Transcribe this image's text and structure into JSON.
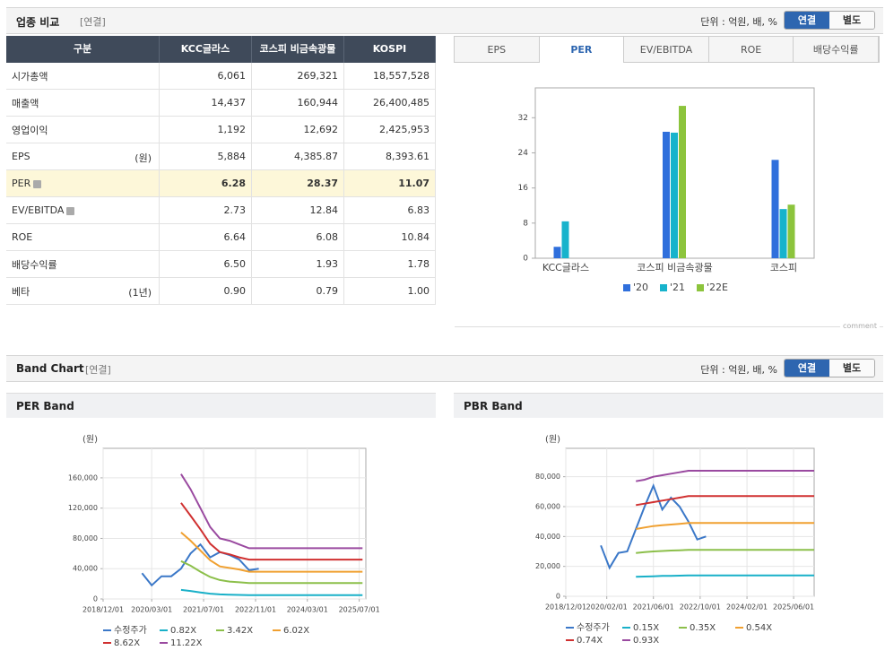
{
  "top": {
    "title": "업종 비교",
    "tag": "[연결]",
    "unit": "단위 : 억원, 배, %",
    "toggle": [
      "연결",
      "별도"
    ]
  },
  "table": {
    "columns": [
      "구분",
      "KCC글라스",
      "코스피 비금속광물",
      "KOSPI"
    ],
    "highlight_row": 4,
    "rows": [
      {
        "label": "시가총액",
        "values": [
          "6,061",
          "269,321",
          "18,557,528"
        ]
      },
      {
        "label": "매출액",
        "values": [
          "14,437",
          "160,944",
          "26,400,485"
        ]
      },
      {
        "label": "영업이익",
        "values": [
          "1,192",
          "12,692",
          "2,425,953"
        ]
      },
      {
        "label": "EPS",
        "note": "(원)",
        "values": [
          "5,884",
          "4,385.87",
          "8,393.61"
        ]
      },
      {
        "label": "PER",
        "help": true,
        "values": [
          "6.28",
          "28.37",
          "11.07"
        ]
      },
      {
        "label": "EV/EBITDA",
        "help": true,
        "values": [
          "2.73",
          "12.84",
          "6.83"
        ]
      },
      {
        "label": "ROE",
        "values": [
          "6.64",
          "6.08",
          "10.84"
        ]
      },
      {
        "label": "배당수익률",
        "values": [
          "6.50",
          "1.93",
          "1.78"
        ]
      },
      {
        "label": "베타",
        "note": "(1년)",
        "values": [
          "0.90",
          "0.79",
          "1.00"
        ]
      }
    ]
  },
  "tabs": {
    "items": [
      "EPS",
      "PER",
      "EV/EBITDA",
      "ROE",
      "배당수익률"
    ],
    "active": 1
  },
  "comment": "comment",
  "band": {
    "title": "Band Chart",
    "tag": "[연결]",
    "unit": "단위 : 억원, 배, %",
    "toggle": [
      "연결",
      "별도"
    ]
  },
  "chart_data": [
    {
      "type": "bar",
      "categories": [
        "KCC글라스",
        "코스피 비금속광물",
        "코스피"
      ],
      "series": [
        {
          "name": "'20",
          "color": "#2f6fdc",
          "values": [
            2.6,
            28.8,
            22.4
          ]
        },
        {
          "name": "'21",
          "color": "#17b3cc",
          "values": [
            8.4,
            28.6,
            11.2
          ]
        },
        {
          "name": "'22E",
          "color": "#8cc43c",
          "values": [
            null,
            34.7,
            12.2
          ]
        }
      ],
      "ylim": [
        0,
        38.8
      ],
      "yticks": [
        0,
        8,
        16,
        24,
        32
      ],
      "grid": false,
      "legend": "bottom"
    },
    {
      "type": "line",
      "title": "PER Band",
      "y_label": "(원)",
      "x": [
        "2019/12/01",
        "2020/03/01",
        "2020/06/01",
        "2020/09/01",
        "2020/12/01",
        "2021/03/01",
        "2021/06/01",
        "2021/09/01",
        "2021/12/01",
        "2022/03/01",
        "2022/06/01",
        "2022/09/01",
        "2022/12/01",
        "2023/03/01",
        "2023/06/01",
        "2023/09/01",
        "2023/12/01",
        "2024/06/01",
        "2024/12/01",
        "2025/06/01",
        "2025/08/01"
      ],
      "xlim": [
        "2018/12/01",
        "2025/09/01"
      ],
      "xticks": [
        "2018/12/01",
        "2020/03/01",
        "2021/07/01",
        "2022/11/01",
        "2024/03/01",
        "2025/07/01"
      ],
      "ylim": [
        0,
        199000
      ],
      "yticks": [
        0,
        {
          "value": 40000,
          "label": "40,000"
        },
        {
          "value": 80000,
          "label": "80,000"
        },
        {
          "value": 120000,
          "label": "120,000"
        },
        {
          "value": 160000,
          "label": "160,000"
        }
      ],
      "grid": true,
      "legend": "bottom",
      "series": [
        {
          "name": "수정주가",
          "color": "#3b78c8",
          "values": [
            34000,
            18000,
            30000,
            30000,
            40000,
            60000,
            72000,
            55000,
            62000,
            58000,
            52000,
            38000,
            40000,
            null,
            null,
            null,
            null,
            null,
            null,
            null,
            null
          ]
        },
        {
          "name": "0.82X",
          "color": "#19b0c8",
          "values": [
            null,
            null,
            null,
            null,
            12000,
            10500,
            8700,
            7000,
            6000,
            5600,
            5300,
            5000,
            5000,
            5000,
            5000,
            5000,
            5000,
            5000,
            5000,
            5000,
            5000
          ]
        },
        {
          "name": "3.42X",
          "color": "#8cbf4a",
          "values": [
            null,
            null,
            null,
            null,
            50000,
            44000,
            36000,
            29000,
            25000,
            23000,
            22000,
            21000,
            21000,
            21000,
            21000,
            21000,
            21000,
            21000,
            21000,
            21000,
            21000
          ]
        },
        {
          "name": "6.02X",
          "color": "#f0a030",
          "values": [
            null,
            null,
            null,
            null,
            88000,
            77000,
            64000,
            51000,
            43000,
            41000,
            39000,
            36000,
            36000,
            36000,
            36000,
            36000,
            36000,
            36000,
            36000,
            36000,
            36000
          ]
        },
        {
          "name": "8.62X",
          "color": "#d03030",
          "values": [
            null,
            null,
            null,
            null,
            127000,
            110000,
            92000,
            73000,
            62000,
            59000,
            55000,
            52000,
            52000,
            52000,
            52000,
            52000,
            52000,
            52000,
            52000,
            52000,
            52000
          ]
        },
        {
          "name": "11.22X",
          "color": "#9a4aa0",
          "values": [
            null,
            null,
            null,
            null,
            165000,
            145000,
            120000,
            95000,
            80000,
            77000,
            72000,
            67000,
            67000,
            67000,
            67000,
            67000,
            67000,
            67000,
            67000,
            67000,
            67000
          ]
        }
      ]
    },
    {
      "type": "line",
      "title": "PBR Band",
      "y_label": "(원)",
      "x": [
        "2019/12/01",
        "2020/03/01",
        "2020/06/01",
        "2020/09/01",
        "2020/12/01",
        "2021/03/01",
        "2021/06/01",
        "2021/09/01",
        "2021/12/01",
        "2022/03/01",
        "2022/06/01",
        "2022/09/01",
        "2022/12/01",
        "2023/03/01",
        "2023/06/01",
        "2023/09/01",
        "2023/12/01",
        "2024/06/01",
        "2024/12/01",
        "2025/06/01",
        "2026/01/01"
      ],
      "xlim": [
        "2018/12/01",
        "2026/01/01"
      ],
      "xticks": [
        "2018/12/01",
        "2020/02/01",
        "2021/06/01",
        "2022/10/01",
        "2024/02/01",
        "2025/06/01"
      ],
      "ylim": [
        0,
        99000
      ],
      "yticks": [
        0,
        {
          "value": 20000,
          "label": "20,000"
        },
        {
          "value": 40000,
          "label": "40,000"
        },
        {
          "value": 60000,
          "label": "60,000"
        },
        {
          "value": 80000,
          "label": "80,000"
        }
      ],
      "grid": true,
      "legend": "bottom",
      "series": [
        {
          "name": "수정주가",
          "color": "#3b78c8",
          "values": [
            34000,
            19000,
            29000,
            30000,
            45000,
            60000,
            74000,
            58000,
            66000,
            60000,
            50000,
            38000,
            40000,
            null,
            null,
            null,
            null,
            null,
            null,
            null,
            null
          ]
        },
        {
          "name": "0.15X",
          "color": "#19b0c8",
          "values": [
            null,
            null,
            null,
            null,
            13000,
            13200,
            13400,
            13600,
            13700,
            13800,
            14000,
            14000,
            14000,
            14000,
            14000,
            14000,
            14000,
            14000,
            14000,
            14000,
            14000
          ]
        },
        {
          "name": "0.35X",
          "color": "#8cbf4a",
          "values": [
            null,
            null,
            null,
            null,
            29000,
            29500,
            30000,
            30300,
            30600,
            30800,
            31000,
            31000,
            31000,
            31000,
            31000,
            31000,
            31000,
            31000,
            31000,
            31000,
            31000
          ]
        },
        {
          "name": "0.54X",
          "color": "#f0a030",
          "values": [
            null,
            null,
            null,
            null,
            45000,
            46000,
            47000,
            47500,
            48000,
            48500,
            49000,
            49000,
            49000,
            49000,
            49000,
            49000,
            49000,
            49000,
            49000,
            49000,
            49000
          ]
        },
        {
          "name": "0.74X",
          "color": "#d03030",
          "values": [
            null,
            null,
            null,
            null,
            61000,
            62000,
            63000,
            64000,
            65000,
            66000,
            67000,
            67000,
            67000,
            67000,
            67000,
            67000,
            67000,
            67000,
            67000,
            67000,
            67000
          ]
        },
        {
          "name": "0.93X",
          "color": "#9a4aa0",
          "values": [
            null,
            null,
            null,
            null,
            77000,
            78000,
            80000,
            81000,
            82000,
            83000,
            84000,
            84000,
            84000,
            84000,
            84000,
            84000,
            84000,
            84000,
            84000,
            84000,
            84000
          ]
        }
      ]
    }
  ]
}
